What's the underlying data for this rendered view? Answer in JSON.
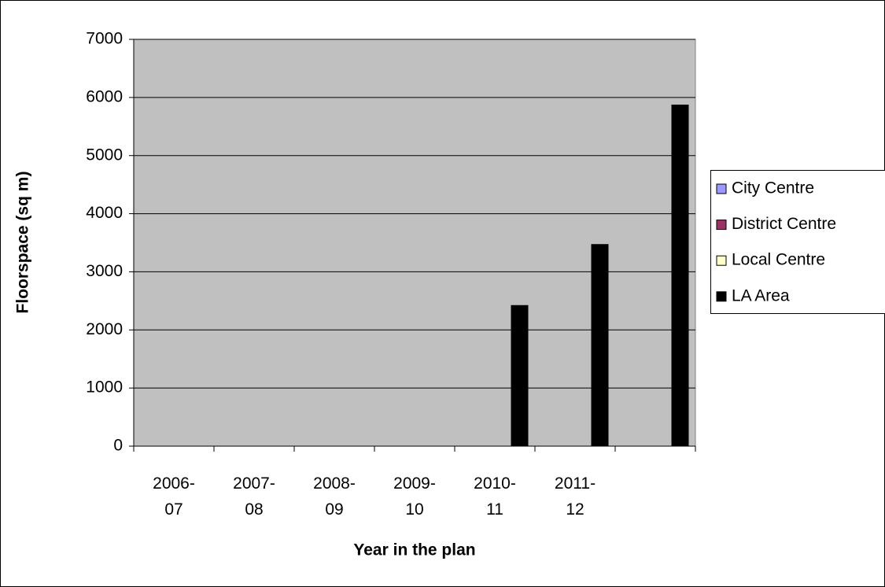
{
  "chart_data": {
    "type": "bar",
    "x_label": "Year in the plan",
    "y_label": "Floorspace (sq m)",
    "categories": [
      "2006-07",
      "2007-08",
      "2008-09",
      "2009-10",
      "2010-11",
      "2011-12",
      null
    ],
    "series": [
      {
        "name": "City Centre",
        "color": "#9999ff",
        "values": [
          0,
          0,
          0,
          0,
          0,
          0,
          0
        ]
      },
      {
        "name": "District Centre",
        "color": "#993366",
        "values": [
          0,
          0,
          0,
          0,
          0,
          0,
          0
        ]
      },
      {
        "name": "Local Centre",
        "color": "#ffffcc",
        "values": [
          0,
          0,
          0,
          0,
          0,
          0,
          0
        ]
      },
      {
        "name": "LA Area",
        "color": "#000000",
        "values": [
          0,
          0,
          0,
          0,
          2420,
          3470,
          5870
        ]
      }
    ],
    "ylim": [
      0,
      7000
    ],
    "yticks": [
      0,
      1000,
      2000,
      3000,
      4000,
      5000,
      6000,
      7000
    ],
    "grid": true,
    "legend": "right"
  }
}
